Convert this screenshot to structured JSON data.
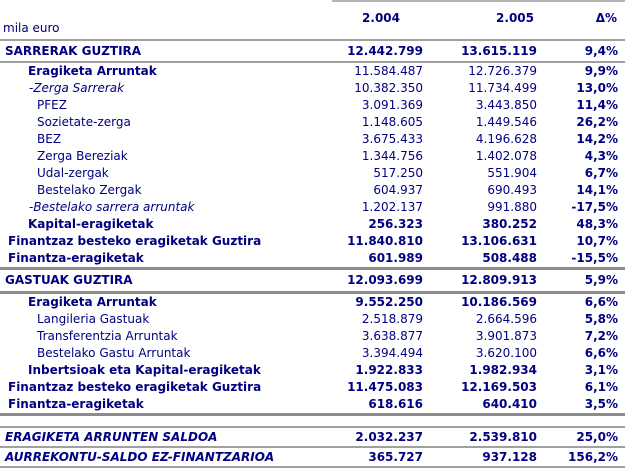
{
  "unit_label": "mila euro",
  "columns": {
    "year1": "2.004",
    "year2": "2.005",
    "delta": "Δ%"
  },
  "colors": {
    "text_navy": "#000080",
    "line_thin": "#a0a0a0",
    "line_thick": "#8c8c8c",
    "background": "#ffffff"
  },
  "rows": [
    {
      "label": "SARRERAK GUZTIRA",
      "y2004": "12.442.799",
      "y2005": "13.615.119",
      "delta": "9,4%",
      "style": "sec bnum bb-thin h20"
    },
    {
      "label": "Eragiketa Arruntak",
      "y2004": "11.584.487",
      "y2005": "12.726.379",
      "delta": "9,9%",
      "style": "ind1"
    },
    {
      "label": "-Zerga Sarrerak",
      "y2004": "10.382.350",
      "y2005": "11.734.499",
      "delta": "13,0%",
      "style": "ital"
    },
    {
      "label": "PFEZ",
      "y2004": "3.091.369",
      "y2005": "3.443.850",
      "delta": "11,4%",
      "style": ""
    },
    {
      "label": "Sozietate-zerga",
      "y2004": "1.148.605",
      "y2005": "1.449.546",
      "delta": "26,2%",
      "style": ""
    },
    {
      "label": "BEZ",
      "y2004": "3.675.433",
      "y2005": "4.196.628",
      "delta": "14,2%",
      "style": ""
    },
    {
      "label": "Zerga Bereziak",
      "y2004": "1.344.756",
      "y2005": "1.402.078",
      "delta": "4,3%",
      "style": ""
    },
    {
      "label": "Udal-zergak",
      "y2004": "517.250",
      "y2005": "551.904",
      "delta": "6,7%",
      "style": ""
    },
    {
      "label": "Bestelako Zergak",
      "y2004": "604.937",
      "y2005": "690.493",
      "delta": "14,1%",
      "style": ""
    },
    {
      "label": "-Bestelako sarrera arruntak",
      "y2004": "1.202.137",
      "y2005": "991.880",
      "delta": "-17,5%",
      "style": "ital"
    },
    {
      "label": "Kapital-eragiketak",
      "y2004": "256.323",
      "y2005": "380.252",
      "delta": "48,3%",
      "style": "ind1 bnum"
    },
    {
      "label": "Finantzaz besteko eragiketak Guztira",
      "y2004": "11.840.810",
      "y2005": "13.106.631",
      "delta": "10,7%",
      "style": "ind0 bnum"
    },
    {
      "label": "Finantza-eragiketak",
      "y2004": "601.989",
      "y2005": "508.488",
      "delta": "-15,5%",
      "style": "ind0 bnum bb-thick"
    },
    {
      "label": "GASTUAK GUZTIRA",
      "y2004": "12.093.699",
      "y2005": "12.809.913",
      "delta": "5,9%",
      "style": "sec bnum bb-thick h21"
    },
    {
      "label": "Eragiketa Arruntak",
      "y2004": "9.552.250",
      "y2005": "10.186.569",
      "delta": "6,6%",
      "style": "ind1 bnum"
    },
    {
      "label": "Langileria Gastuak",
      "y2004": "2.518.879",
      "y2005": "2.664.596",
      "delta": "5,8%",
      "style": ""
    },
    {
      "label": "Transferentzia Arruntak",
      "y2004": "3.638.877",
      "y2005": "3.901.873",
      "delta": "7,2%",
      "style": ""
    },
    {
      "label": "Bestelako Gastu Arruntak",
      "y2004": "3.394.494",
      "y2005": "3.620.100",
      "delta": "6,6%",
      "style": ""
    },
    {
      "label": "Inbertsioak eta Kapital-eragiketak",
      "y2004": "1.922.833",
      "y2005": "1.982.934",
      "delta": "3,1%",
      "style": "ind1 bnum"
    },
    {
      "label": "Finantzaz besteko eragiketak Guztira",
      "y2004": "11.475.083",
      "y2005": "12.169.503",
      "delta": "6,1%",
      "style": "ind0 bnum"
    },
    {
      "label": "Finantza-eragiketak",
      "y2004": "618.616",
      "y2005": "640.410",
      "delta": "3,5%",
      "style": "ind0 bnum bb-thick"
    },
    {
      "gap": true
    },
    {
      "label": "ERAGIKETA ARRUNTEN SALDOA",
      "y2004": "2.032.237",
      "y2005": "2.539.810",
      "delta": "25,0%",
      "style": "total bnum bt-thin bb-thin h18"
    },
    {
      "label": "AURREKONTU-SALDO EZ-FINANTZARIOA",
      "y2004": "365.727",
      "y2005": "937.128",
      "delta": "156,2%",
      "style": "total bnum bb-thin h18"
    }
  ]
}
